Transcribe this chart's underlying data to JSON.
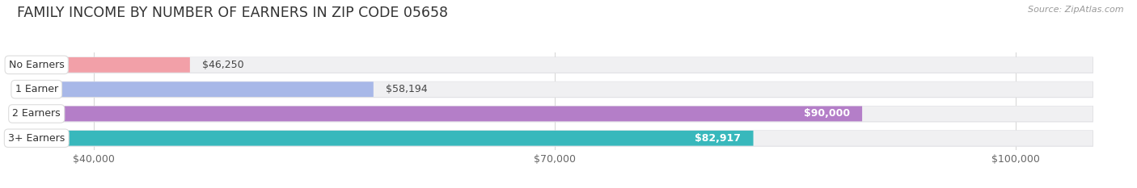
{
  "title": "FAMILY INCOME BY NUMBER OF EARNERS IN ZIP CODE 05658",
  "source": "Source: ZipAtlas.com",
  "categories": [
    "No Earners",
    "1 Earner",
    "2 Earners",
    "3+ Earners"
  ],
  "values": [
    46250,
    58194,
    90000,
    82917
  ],
  "bar_colors": [
    "#f2a0a8",
    "#a8b8e8",
    "#b47ec8",
    "#38b8bc"
  ],
  "xlim": [
    35000,
    107000
  ],
  "data_min": 35000,
  "data_max": 105000,
  "xticks": [
    40000,
    70000,
    100000
  ],
  "xtick_labels": [
    "$40,000",
    "$70,000",
    "$100,000"
  ],
  "bg_color": "#ffffff",
  "bar_bg_color": "#f0f0f2",
  "bar_bg_edge": "#e0e0e4",
  "title_fontsize": 12.5,
  "source_fontsize": 8,
  "label_fontsize": 9,
  "tick_fontsize": 9,
  "value_threshold": 70000
}
